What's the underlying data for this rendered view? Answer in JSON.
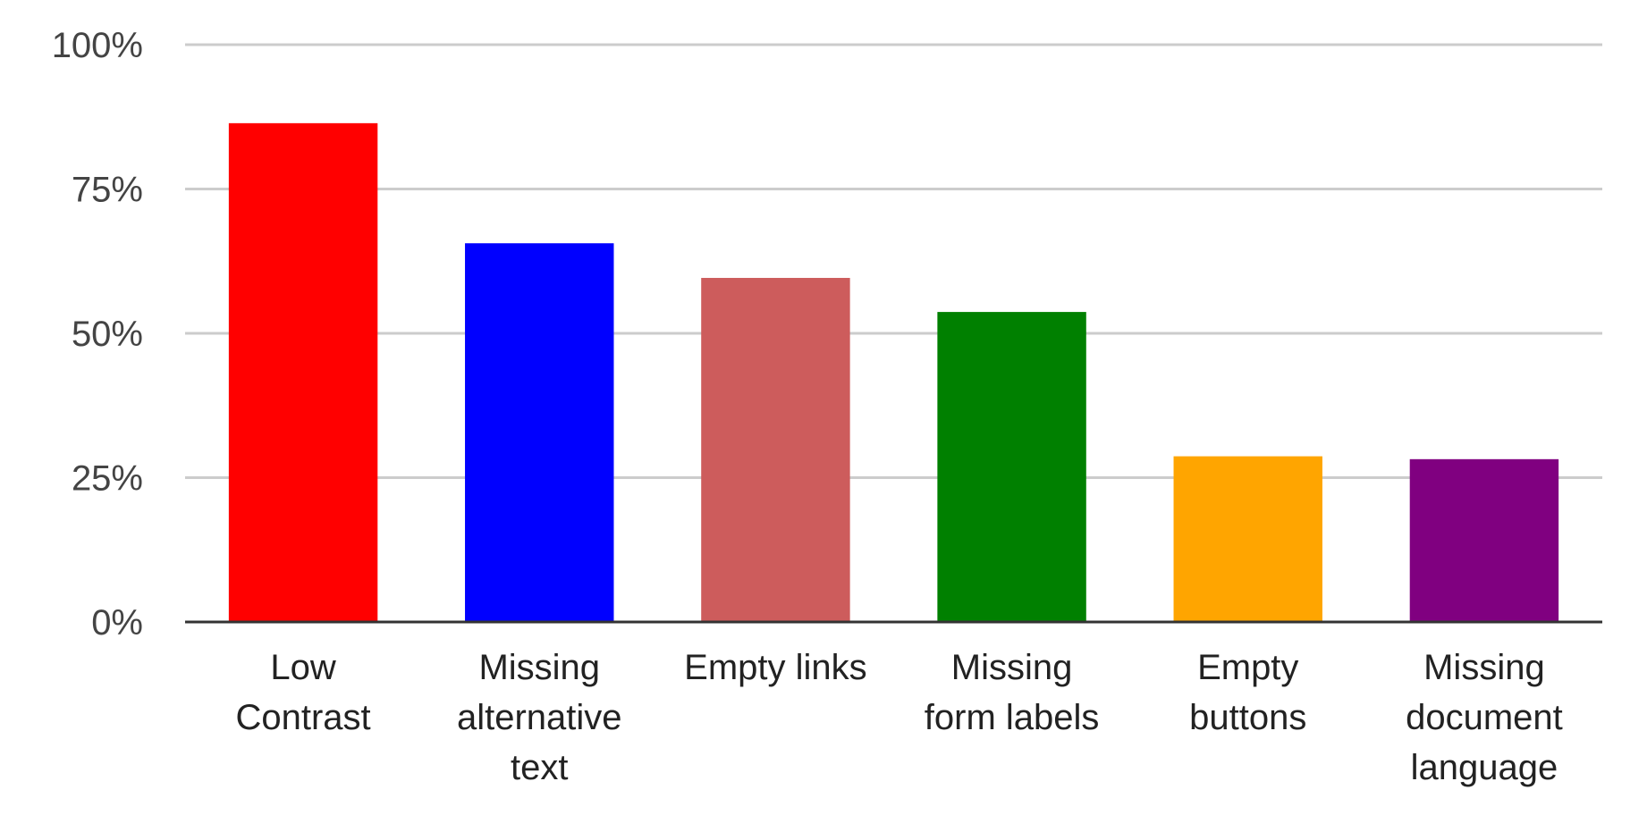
{
  "chart_data": {
    "type": "bar",
    "title": "",
    "xlabel": "",
    "ylabel": "",
    "ylim": [
      0,
      100
    ],
    "y_ticks": [
      "0%",
      "25%",
      "50%",
      "75%",
      "100%"
    ],
    "y_tick_values": [
      0,
      25,
      50,
      75,
      100
    ],
    "grid": true,
    "legend": "none",
    "categories": [
      "Low Contrast",
      "Missing alternative text",
      "Empty links",
      "Missing form labels",
      "Empty buttons",
      "Missing document language"
    ],
    "category_label_lines": [
      [
        "Low",
        "Contrast"
      ],
      [
        "Missing",
        "alternative",
        "text"
      ],
      [
        "Empty links"
      ],
      [
        "Missing",
        "form labels"
      ],
      [
        "Empty",
        "buttons"
      ],
      [
        "Missing",
        "document",
        "language"
      ]
    ],
    "values": [
      86.4,
      65.6,
      59.6,
      53.7,
      28.7,
      28.2
    ],
    "colors": [
      "#ff0000",
      "#0000ff",
      "#cd5c5c",
      "#008000",
      "#ffa500",
      "#800080"
    ]
  }
}
